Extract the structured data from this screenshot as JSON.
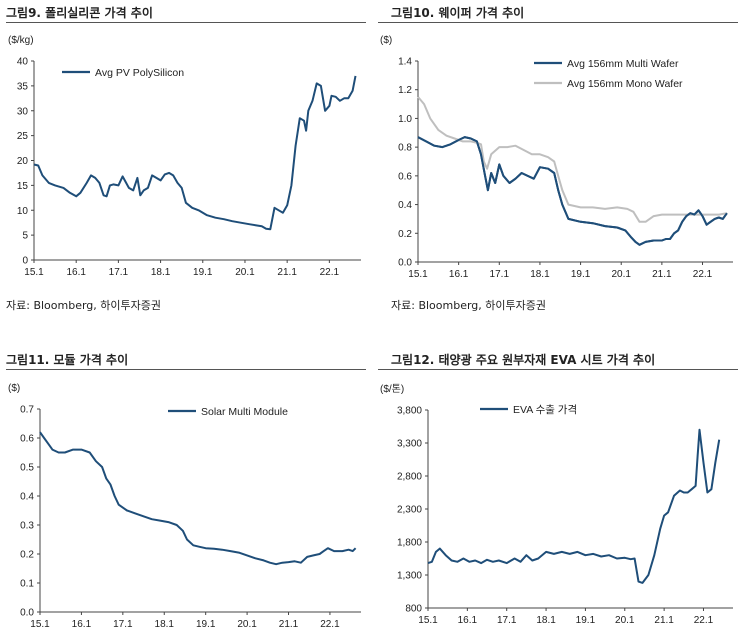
{
  "source_note": "자료: Bloomberg, 하이투자증권",
  "chart_data": [
    {
      "title": "그림9. 폴리실리콘 가격 추이",
      "type": "line",
      "ylabel": "($/kg)",
      "ylim": [
        0,
        40
      ],
      "yticks": [
        0,
        5,
        10,
        15,
        20,
        25,
        30,
        35,
        40
      ],
      "xlim": [
        2015.0,
        2022.75
      ],
      "xticks": [
        "15.1",
        "16.1",
        "17.1",
        "18.1",
        "19.1",
        "20.1",
        "21.1",
        "22.1"
      ],
      "grid": false,
      "legend_position": "top-left",
      "series": [
        {
          "name": "Avg PV PolySilicon",
          "color": "#1f4e79",
          "x": [
            2015.0,
            2015.1,
            2015.2,
            2015.35,
            2015.5,
            2015.7,
            2015.85,
            2016.0,
            2016.1,
            2016.25,
            2016.35,
            2016.45,
            2016.55,
            2016.65,
            2016.72,
            2016.8,
            2016.88,
            2017.0,
            2017.1,
            2017.25,
            2017.35,
            2017.45,
            2017.52,
            2017.6,
            2017.7,
            2017.8,
            2017.9,
            2018.0,
            2018.1,
            2018.2,
            2018.3,
            2018.4,
            2018.5,
            2018.6,
            2018.75,
            2018.9,
            2019.1,
            2019.3,
            2019.5,
            2019.7,
            2019.9,
            2020.1,
            2020.25,
            2020.4,
            2020.5,
            2020.6,
            2020.7,
            2020.8,
            2020.9,
            2021.0,
            2021.1,
            2021.2,
            2021.3,
            2021.4,
            2021.45,
            2021.5,
            2021.6,
            2021.7,
            2021.8,
            2021.9,
            2022.0,
            2022.05,
            2022.15,
            2022.25,
            2022.35,
            2022.45,
            2022.55,
            2022.62
          ],
          "y": [
            19.2,
            19.0,
            17.0,
            15.5,
            15.0,
            14.5,
            13.5,
            12.8,
            13.5,
            15.5,
            17.0,
            16.5,
            15.5,
            13.0,
            12.8,
            15.0,
            15.2,
            15.0,
            16.8,
            14.5,
            14.0,
            16.5,
            13.0,
            14.0,
            14.5,
            17.0,
            16.5,
            16.0,
            17.2,
            17.5,
            17.0,
            15.5,
            14.5,
            11.5,
            10.5,
            10.0,
            9.0,
            8.5,
            8.2,
            7.8,
            7.5,
            7.2,
            7.0,
            6.8,
            6.3,
            6.2,
            10.5,
            10.0,
            9.5,
            11.0,
            15.0,
            23.0,
            28.5,
            28.0,
            26.0,
            30.0,
            32.0,
            35.5,
            35.0,
            30.0,
            31.0,
            33.0,
            32.8,
            32.0,
            32.5,
            32.5,
            34.0,
            37.0
          ]
        }
      ]
    },
    {
      "title": "그림10. 웨이퍼 가격 추이",
      "type": "line",
      "ylabel": "($)",
      "ylim": [
        0,
        1.4
      ],
      "yticks": [
        "0.0",
        "0.2",
        "0.4",
        "0.6",
        "0.8",
        "1.0",
        "1.2",
        "1.4"
      ],
      "xlim": [
        2015.0,
        2022.75
      ],
      "xticks": [
        "15.1",
        "16.1",
        "17.1",
        "18.1",
        "19.1",
        "20.1",
        "21.1",
        "22.1"
      ],
      "grid": false,
      "legend_position": "top-right",
      "series": [
        {
          "name": "Avg 156mm Multi Wafer",
          "color": "#1f4e79",
          "x": [
            2015.0,
            2015.2,
            2015.4,
            2015.6,
            2015.8,
            2016.0,
            2016.15,
            2016.3,
            2016.45,
            2016.55,
            2016.65,
            2016.72,
            2016.8,
            2016.9,
            2017.0,
            2017.1,
            2017.25,
            2017.4,
            2017.55,
            2017.7,
            2017.85,
            2018.0,
            2018.2,
            2018.35,
            2018.45,
            2018.55,
            2018.7,
            2019.0,
            2019.3,
            2019.6,
            2019.9,
            2020.1,
            2020.25,
            2020.35,
            2020.45,
            2020.6,
            2020.8,
            2021.0,
            2021.1,
            2021.2,
            2021.3,
            2021.4,
            2021.5,
            2021.6,
            2021.7,
            2021.8,
            2021.9,
            2022.0,
            2022.1,
            2022.2,
            2022.3,
            2022.4,
            2022.5,
            2022.6
          ],
          "y": [
            0.87,
            0.84,
            0.81,
            0.8,
            0.82,
            0.85,
            0.87,
            0.86,
            0.84,
            0.75,
            0.6,
            0.5,
            0.62,
            0.55,
            0.68,
            0.6,
            0.55,
            0.58,
            0.62,
            0.6,
            0.58,
            0.66,
            0.65,
            0.62,
            0.5,
            0.4,
            0.3,
            0.28,
            0.27,
            0.25,
            0.24,
            0.22,
            0.17,
            0.14,
            0.12,
            0.14,
            0.15,
            0.15,
            0.16,
            0.16,
            0.2,
            0.22,
            0.28,
            0.32,
            0.34,
            0.33,
            0.36,
            0.32,
            0.26,
            0.28,
            0.3,
            0.31,
            0.3,
            0.34
          ]
        },
        {
          "name": "Avg 156mm Mono Wafer",
          "color": "#bfbfbf",
          "x": [
            2015.0,
            2015.15,
            2015.3,
            2015.5,
            2015.7,
            2015.9,
            2016.1,
            2016.3,
            2016.45,
            2016.55,
            2016.62,
            2016.7,
            2016.8,
            2017.0,
            2017.2,
            2017.4,
            2017.6,
            2017.8,
            2018.0,
            2018.2,
            2018.35,
            2018.45,
            2018.55,
            2018.7,
            2019.0,
            2019.3,
            2019.6,
            2019.9,
            2020.15,
            2020.3,
            2020.45,
            2020.6,
            2020.8,
            2021.0,
            2021.2,
            2021.4,
            2021.6,
            2021.8,
            2022.0,
            2022.2,
            2022.4,
            2022.6
          ],
          "y": [
            1.15,
            1.1,
            1.0,
            0.92,
            0.88,
            0.86,
            0.84,
            0.84,
            0.83,
            0.82,
            0.7,
            0.65,
            0.75,
            0.8,
            0.8,
            0.81,
            0.78,
            0.75,
            0.75,
            0.73,
            0.7,
            0.6,
            0.5,
            0.4,
            0.38,
            0.38,
            0.37,
            0.38,
            0.37,
            0.35,
            0.28,
            0.28,
            0.32,
            0.33,
            0.33,
            0.33,
            0.33,
            0.33,
            0.33,
            0.33,
            0.33,
            0.34
          ]
        }
      ]
    },
    {
      "title": "그림11.  모듈 가격 추이",
      "type": "line",
      "ylabel": "($)",
      "ylim": [
        0,
        0.7
      ],
      "yticks": [
        "0.0",
        "0.1",
        "0.2",
        "0.3",
        "0.4",
        "0.5",
        "0.6",
        "0.7"
      ],
      "xlim": [
        2015.0,
        2022.75
      ],
      "xticks": [
        "15.1",
        "16.1",
        "17.1",
        "18.1",
        "19.1",
        "20.1",
        "21.1",
        "22.1"
      ],
      "grid": false,
      "legend_position": "top-right",
      "series": [
        {
          "name": "Solar Multi Module",
          "color": "#1f4e79",
          "x": [
            2015.0,
            2015.1,
            2015.2,
            2015.3,
            2015.45,
            2015.6,
            2015.8,
            2016.0,
            2016.2,
            2016.35,
            2016.5,
            2016.6,
            2016.7,
            2016.8,
            2016.9,
            2017.0,
            2017.1,
            2017.3,
            2017.5,
            2017.7,
            2017.9,
            2018.1,
            2018.3,
            2018.45,
            2018.55,
            2018.7,
            2018.85,
            2019.0,
            2019.2,
            2019.4,
            2019.6,
            2019.8,
            2020.0,
            2020.2,
            2020.4,
            2020.55,
            2020.7,
            2020.85,
            2021.0,
            2021.15,
            2021.3,
            2021.45,
            2021.6,
            2021.75,
            2021.85,
            2021.95,
            2022.1,
            2022.3,
            2022.45,
            2022.55,
            2022.62
          ],
          "y": [
            0.62,
            0.6,
            0.58,
            0.56,
            0.55,
            0.55,
            0.56,
            0.56,
            0.55,
            0.52,
            0.5,
            0.46,
            0.44,
            0.4,
            0.37,
            0.36,
            0.35,
            0.34,
            0.33,
            0.32,
            0.315,
            0.31,
            0.3,
            0.28,
            0.25,
            0.23,
            0.225,
            0.22,
            0.218,
            0.215,
            0.21,
            0.205,
            0.195,
            0.185,
            0.178,
            0.17,
            0.165,
            0.17,
            0.172,
            0.175,
            0.17,
            0.19,
            0.195,
            0.2,
            0.21,
            0.22,
            0.21,
            0.21,
            0.215,
            0.21,
            0.22
          ]
        }
      ]
    },
    {
      "title": "그림12.  태양광 주요 원부자재 EVA 시트 가격 추이",
      "type": "line",
      "ylabel": "($/톤)",
      "ylim": [
        800,
        3800
      ],
      "yticks": [
        "800",
        "1,300",
        "1,800",
        "2,300",
        "2,800",
        "3,300",
        "3,800"
      ],
      "xlim": [
        2015.0,
        2022.75
      ],
      "xticks": [
        "15.1",
        "16.1",
        "17.1",
        "18.1",
        "19.1",
        "20.1",
        "21.1",
        "22.1"
      ],
      "grid": false,
      "legend_position": "top-left",
      "series": [
        {
          "name": "EVA 수출 가격",
          "color": "#1f4e79",
          "x": [
            2015.0,
            2015.1,
            2015.2,
            2015.3,
            2015.45,
            2015.6,
            2015.75,
            2015.9,
            2016.05,
            2016.2,
            2016.35,
            2016.5,
            2016.65,
            2016.8,
            2017.0,
            2017.2,
            2017.35,
            2017.5,
            2017.65,
            2017.8,
            2018.0,
            2018.2,
            2018.4,
            2018.6,
            2018.8,
            2019.0,
            2019.2,
            2019.4,
            2019.6,
            2019.8,
            2020.0,
            2020.15,
            2020.25,
            2020.35,
            2020.45,
            2020.6,
            2020.75,
            2020.9,
            2021.0,
            2021.1,
            2021.25,
            2021.4,
            2021.5,
            2021.6,
            2021.7,
            2021.8,
            2021.85,
            2021.9,
            2022.0,
            2022.1,
            2022.2,
            2022.3,
            2022.4
          ],
          "y": [
            1480,
            1500,
            1650,
            1700,
            1600,
            1520,
            1500,
            1550,
            1500,
            1520,
            1480,
            1530,
            1500,
            1520,
            1480,
            1550,
            1500,
            1600,
            1520,
            1550,
            1650,
            1620,
            1650,
            1620,
            1650,
            1600,
            1620,
            1580,
            1600,
            1550,
            1560,
            1540,
            1550,
            1200,
            1180,
            1300,
            1600,
            2000,
            2200,
            2250,
            2500,
            2580,
            2550,
            2550,
            2600,
            2650,
            3100,
            3500,
            3000,
            2550,
            2600,
            3000,
            3350
          ]
        }
      ]
    }
  ]
}
